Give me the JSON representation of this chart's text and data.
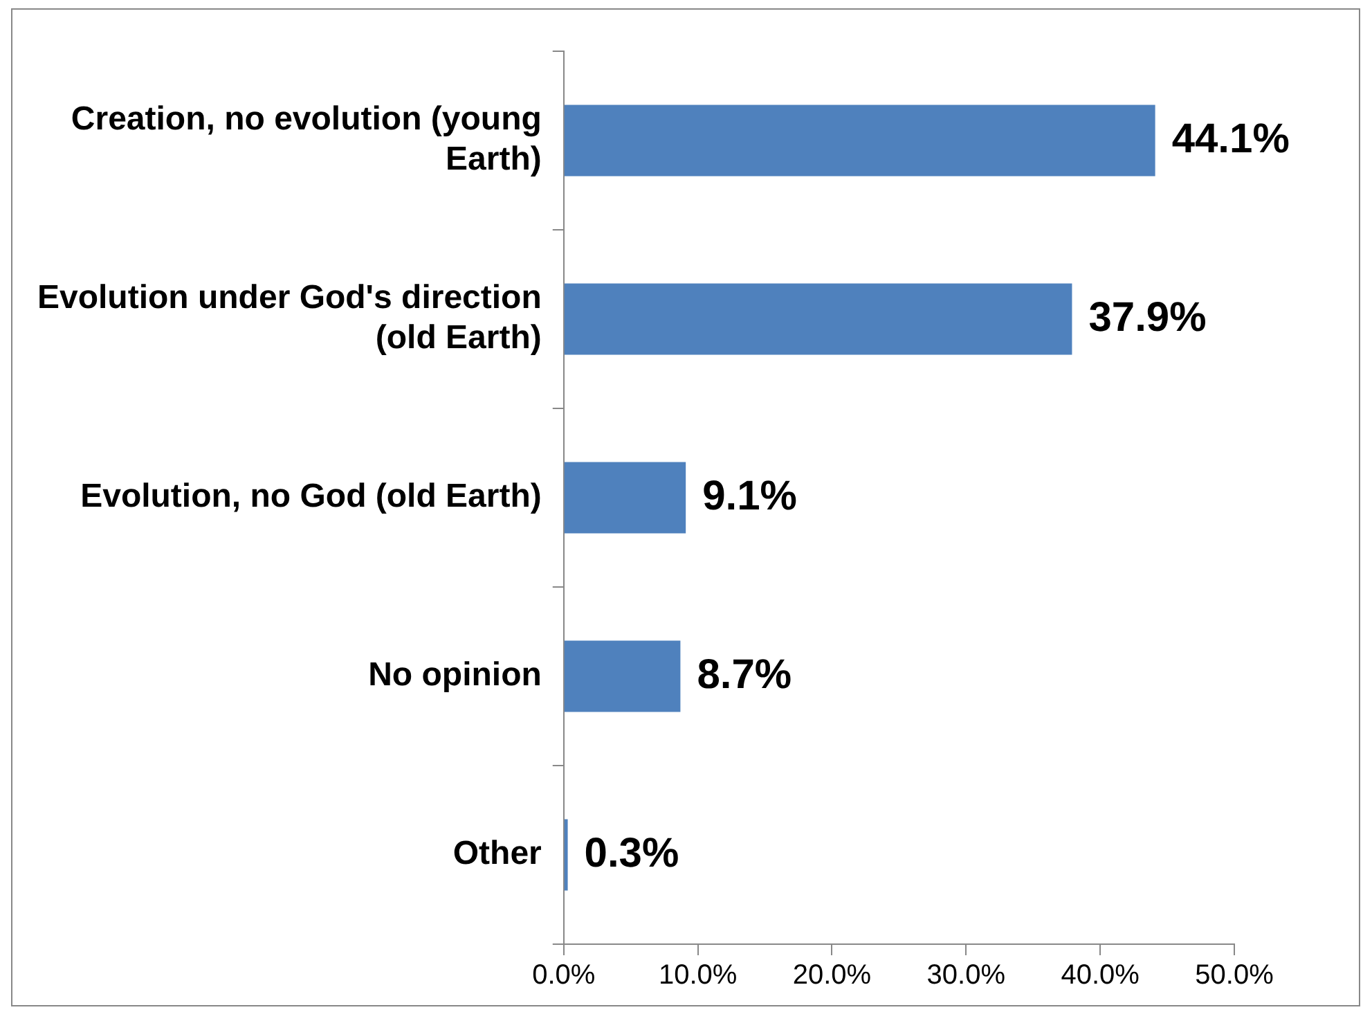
{
  "chart_data": {
    "type": "bar",
    "orientation": "horizontal",
    "categories": [
      "Creation, no evolution (young Earth)",
      "Evolution under God's direction (old Earth)",
      "Evolution, no God (old Earth)",
      "No opinion",
      "Other"
    ],
    "values": [
      44.1,
      37.9,
      9.1,
      8.7,
      0.3
    ],
    "value_labels": [
      "44.1%",
      "37.9%",
      "9.1%",
      "8.7%",
      "0.3%"
    ],
    "color": "#4f81bd",
    "xlim": [
      0,
      50
    ],
    "xticks": [
      {
        "value": 0,
        "label": "0.0%"
      },
      {
        "value": 10,
        "label": "10.0%"
      },
      {
        "value": 20,
        "label": "20.0%"
      },
      {
        "value": 30,
        "label": "30.0%"
      },
      {
        "value": 40,
        "label": "40.0%"
      },
      {
        "value": 50,
        "label": "50.0%"
      }
    ],
    "grid": false,
    "legend": false
  }
}
